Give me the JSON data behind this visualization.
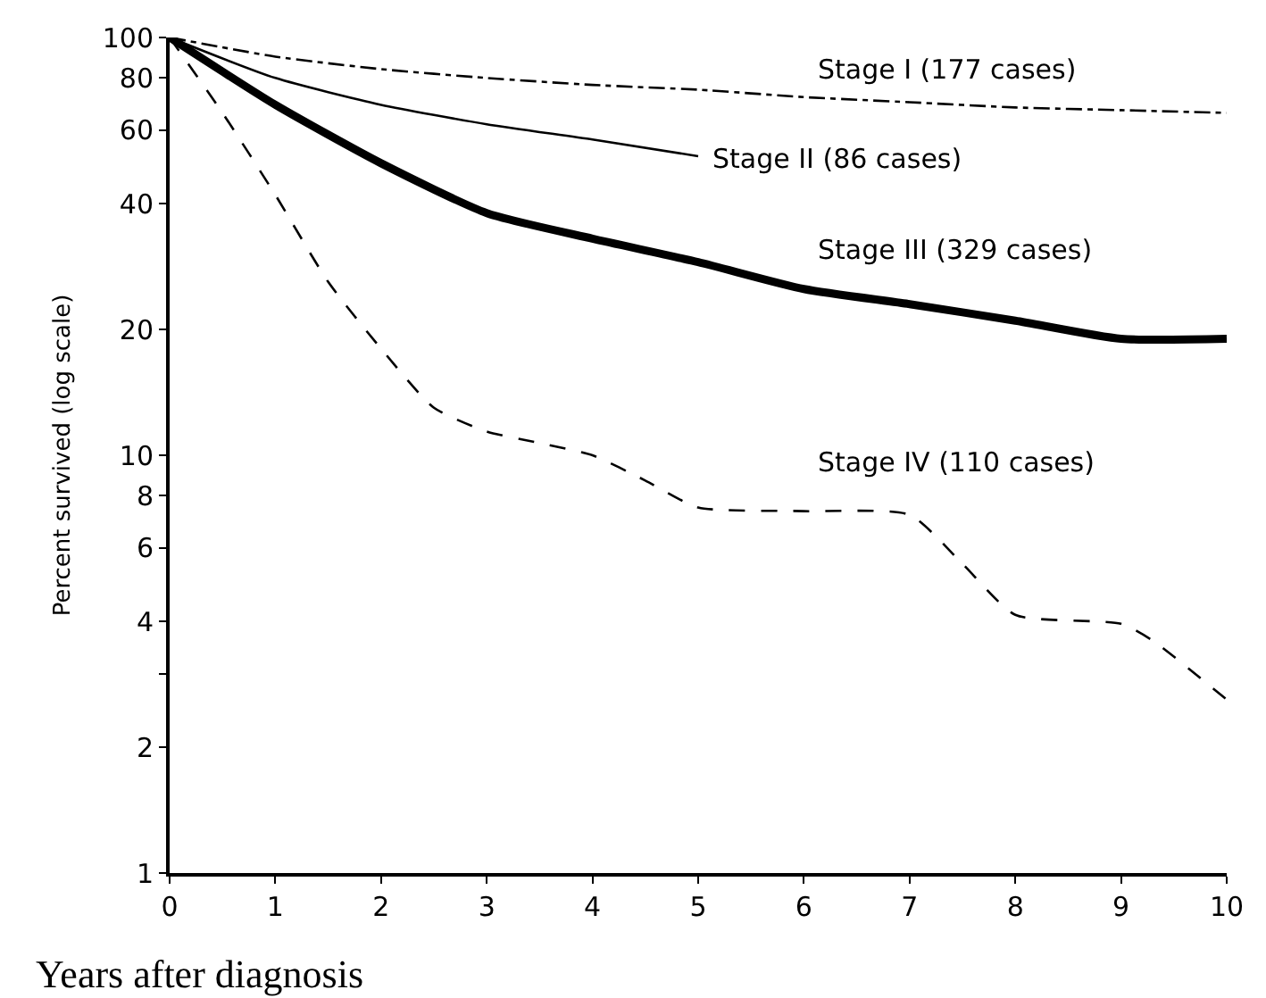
{
  "chart_data": {
    "type": "line",
    "xlabel": "Years after diagnosis",
    "ylabel": "Percent survived (log scale)",
    "log": "y",
    "legend": false,
    "marker": "none",
    "xlim": [
      0,
      10
    ],
    "xticks": [
      0,
      1,
      2,
      3,
      4,
      5,
      6,
      7,
      8,
      9,
      10
    ],
    "ylim": [
      1,
      100
    ],
    "yticks": [
      1,
      2,
      {
        "value": 3,
        "label": null
      },
      4,
      6,
      8,
      10,
      20,
      40,
      60,
      80,
      100
    ],
    "series": [
      {
        "name": "Stage I (177 cases)",
        "color": "#000000",
        "line_style": "dashdot",
        "x": [
          0,
          1,
          2,
          3,
          4,
          5,
          6,
          7,
          8,
          9,
          10
        ],
        "values": [
          100,
          90,
          84,
          80,
          77,
          75,
          72,
          70,
          68,
          67,
          66
        ]
      },
      {
        "name": "Stage II (86 cases)",
        "color": "#000000",
        "line_style": "solid",
        "x": [
          0,
          1,
          2,
          3,
          4,
          5
        ],
        "values": [
          100,
          80,
          69,
          62,
          57,
          52
        ]
      },
      {
        "name": "Stage III (329 cases)",
        "color": "#000000",
        "line_style": "solid",
        "x": [
          0,
          1,
          2,
          3,
          4,
          5,
          6,
          7,
          8,
          9,
          10
        ],
        "values": [
          100,
          69,
          50,
          38,
          33,
          29,
          25,
          23,
          21,
          19,
          19
        ]
      },
      {
        "name": "Stage IV (110 cases)",
        "color": "#000000",
        "line_style": "dashed",
        "x": [
          0,
          0.5,
          1,
          1.5,
          2,
          2.5,
          3,
          3.5,
          4,
          4.5,
          5,
          6,
          7,
          7.5,
          8,
          9,
          9.3,
          10
        ],
        "values": [
          100,
          66,
          42,
          26,
          18,
          13,
          11.4,
          10.7,
          10,
          8.7,
          7.5,
          7.35,
          7.2,
          5.5,
          4.15,
          3.95,
          3.6,
          2.6
        ]
      }
    ]
  }
}
